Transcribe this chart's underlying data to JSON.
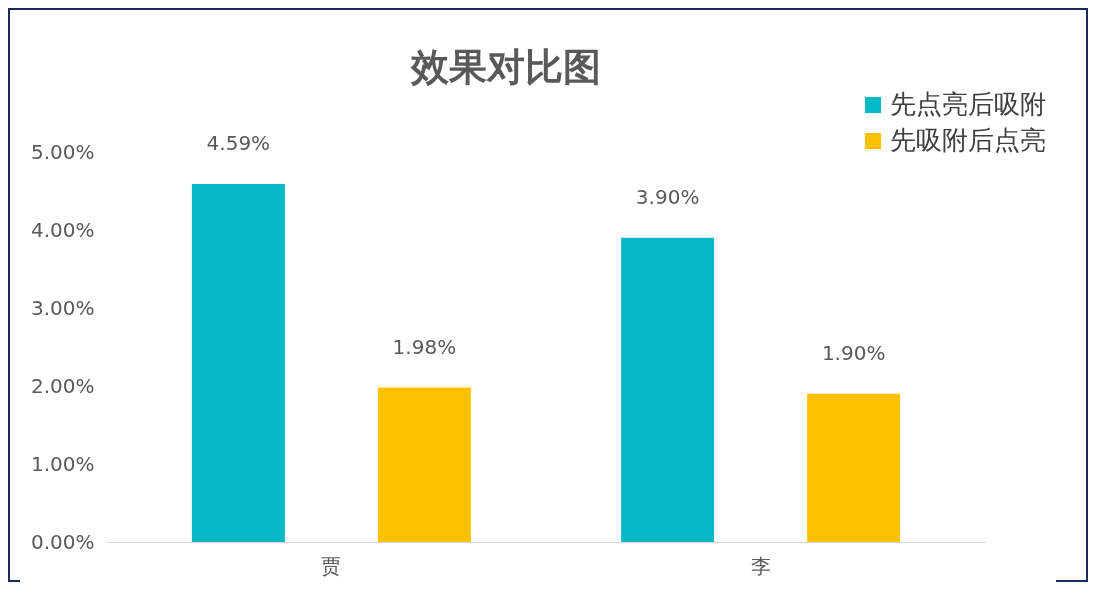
{
  "chart_data": {
    "type": "bar",
    "title": "效果对比图",
    "categories": [
      "贾",
      "李"
    ],
    "series": [
      {
        "name": "先点亮后吸附",
        "color": "#06b9c8",
        "values": [
          4.59,
          3.9
        ],
        "value_labels": [
          "4.59%",
          "3.90%"
        ]
      },
      {
        "name": "先吸附后点亮",
        "color": "#ffc000",
        "values": [
          1.98,
          1.9
        ],
        "value_labels": [
          "1.98%",
          "1.90%"
        ]
      }
    ],
    "ylim": [
      0,
      5
    ],
    "yticks": [
      {
        "value": 0,
        "label": "0.00%"
      },
      {
        "value": 1,
        "label": "1.00%"
      },
      {
        "value": 2,
        "label": "2.00%"
      },
      {
        "value": 3,
        "label": "3.00%"
      },
      {
        "value": 4,
        "label": "4.00%"
      },
      {
        "value": 5,
        "label": "5.00%"
      }
    ],
    "grid": false,
    "legend": "top right"
  }
}
